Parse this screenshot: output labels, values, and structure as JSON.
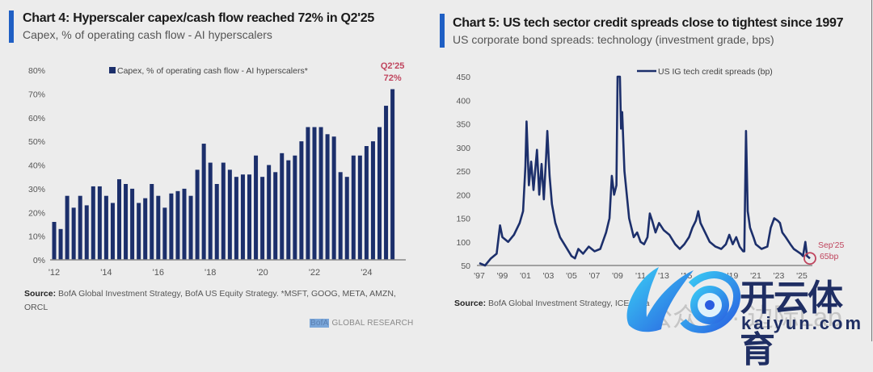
{
  "charts": {
    "left": {
      "title": "Chart 4: Hyperscaler capex/cash flow reached 72% in Q2'25",
      "subtitle": "Capex, % of operating cash flow - AI hyperscalers",
      "source_label": "Source:",
      "source_text": "BofA Global Investment Strategy, BofA US Equity Strategy. *MSFT, GOOG, META, AMZN, ORCL",
      "brand_bofa": "BofA",
      "brand_rest": " GLOBAL RESEARCH"
    },
    "right": {
      "title": "Chart 5: US tech sector credit spreads close to tightest since 1997",
      "subtitle": "US corporate bond spreads: technology (investment grade, bps)",
      "source_label": "Source:",
      "source_text": "BofA Global Investment Strategy, ICE Data"
    }
  },
  "watermark": {
    "cn": "开云体育",
    "en": "kaiyun.com",
    "gray": "公众号 · 边际Lab"
  },
  "colors": {
    "bar": "#1c2f6b",
    "line": "#1c2f6b",
    "accent": "#1f5fc4",
    "annotation": "#c0455e",
    "axis": "#888888"
  },
  "chart_data": [
    {
      "type": "bar",
      "title": "Chart 4: Hyperscaler capex/cash flow reached 72% in Q2'25",
      "subtitle": "Capex, % of operating cash flow - AI hyperscalers",
      "legend": [
        "Capex, % of operating cash flow - AI hyperscalers*"
      ],
      "legend_position": "top-center",
      "xlabel": "",
      "ylabel": "",
      "ylim": [
        0,
        80
      ],
      "yticks": [
        0,
        10,
        20,
        30,
        40,
        50,
        60,
        70,
        80
      ],
      "ytick_labels": [
        "0%",
        "10%",
        "20%",
        "30%",
        "40%",
        "50%",
        "60%",
        "70%",
        "80%"
      ],
      "xtick_labels": [
        "'12",
        "'14",
        "'16",
        "'18",
        "'20",
        "'22",
        "'24"
      ],
      "xtick_bar_index": [
        0,
        8,
        16,
        24,
        32,
        40,
        48
      ],
      "annotation": {
        "label": "Q2'25",
        "value_label": "72%"
      },
      "grid": false,
      "series": [
        {
          "name": "Capex, % of operating cash flow - AI hyperscalers*",
          "values": [
            16,
            13,
            27,
            22,
            27,
            23,
            31,
            31,
            27,
            24,
            34,
            32,
            30,
            24,
            26,
            32,
            27,
            22,
            28,
            29,
            30,
            27,
            38,
            49,
            41,
            32,
            41,
            38,
            35,
            36,
            36,
            44,
            35,
            40,
            37,
            45,
            42,
            44,
            50,
            56,
            56,
            56,
            53,
            52,
            37,
            35,
            44,
            44,
            48,
            50,
            56,
            65,
            72
          ]
        }
      ]
    },
    {
      "type": "line",
      "title": "Chart 5: US tech sector credit spreads close to tightest since 1997",
      "subtitle": "US corporate bond spreads: technology (investment grade, bps)",
      "legend": [
        "US IG tech credit spreads (bp)"
      ],
      "legend_position": "top-center",
      "xlabel": "",
      "ylabel": "",
      "ylim": [
        50,
        450
      ],
      "xlim": [
        1997,
        2025.8
      ],
      "yticks": [
        50,
        100,
        150,
        200,
        250,
        300,
        350,
        400,
        450
      ],
      "ytick_labels": [
        "50",
        "100",
        "150",
        "200",
        "250",
        "300",
        "350",
        "400",
        "450"
      ],
      "xticks": [
        1997,
        1999,
        2001,
        2003,
        2005,
        2007,
        2009,
        2011,
        2013,
        2015,
        2017,
        2019,
        2021,
        2023,
        2025
      ],
      "xtick_labels": [
        "'97",
        "'99",
        "'01",
        "'03",
        "'05",
        "'07",
        "'09",
        "'11",
        "'13",
        "'15",
        "'17",
        "'19",
        "'21",
        "'23",
        "'25"
      ],
      "annotation": {
        "label": "Sep'25",
        "value_label": "65bp",
        "x": 2025.7,
        "y": 65
      },
      "grid": false,
      "series": [
        {
          "name": "US IG tech credit spreads (bp)",
          "x": [
            1997.0,
            1997.5,
            1998.0,
            1998.5,
            1998.8,
            1999.0,
            1999.5,
            2000.0,
            2000.5,
            2000.8,
            2001.0,
            2001.1,
            2001.3,
            2001.5,
            2001.7,
            2002.0,
            2002.2,
            2002.4,
            2002.6,
            2002.8,
            2002.9,
            2003.1,
            2003.3,
            2003.6,
            2004.0,
            2004.5,
            2005.0,
            2005.3,
            2005.6,
            2006.0,
            2006.5,
            2007.0,
            2007.5,
            2008.0,
            2008.3,
            2008.5,
            2008.7,
            2008.9,
            2009.0,
            2009.2,
            2009.3,
            2009.4,
            2009.6,
            2010.0,
            2010.4,
            2010.7,
            2011.0,
            2011.3,
            2011.6,
            2011.8,
            2012.0,
            2012.3,
            2012.6,
            2013.0,
            2013.5,
            2014.0,
            2014.4,
            2014.8,
            2015.2,
            2015.5,
            2015.8,
            2016.0,
            2016.2,
            2016.6,
            2017.0,
            2017.5,
            2018.0,
            2018.4,
            2018.7,
            2019.0,
            2019.3,
            2019.6,
            2019.9,
            2020.0,
            2020.15,
            2020.3,
            2020.5,
            2020.8,
            2021.0,
            2021.5,
            2022.0,
            2022.3,
            2022.6,
            2022.9,
            2023.1,
            2023.3,
            2023.6,
            2024.0,
            2024.3,
            2024.6,
            2024.9,
            2025.1,
            2025.3,
            2025.45,
            2025.7
          ],
          "values": [
            55,
            50,
            65,
            75,
            135,
            110,
            100,
            115,
            140,
            165,
            260,
            355,
            220,
            270,
            210,
            295,
            200,
            265,
            190,
            280,
            335,
            240,
            180,
            140,
            110,
            90,
            70,
            65,
            85,
            75,
            90,
            80,
            85,
            120,
            150,
            240,
            200,
            220,
            450,
            450,
            340,
            375,
            250,
            150,
            110,
            120,
            100,
            95,
            110,
            160,
            145,
            120,
            140,
            125,
            115,
            95,
            85,
            95,
            110,
            130,
            145,
            165,
            140,
            120,
            100,
            90,
            85,
            95,
            115,
            95,
            110,
            90,
            80,
            80,
            335,
            165,
            130,
            110,
            95,
            85,
            90,
            130,
            150,
            145,
            140,
            120,
            110,
            95,
            85,
            80,
            75,
            70,
            100,
            70,
            65
          ]
        }
      ]
    }
  ]
}
